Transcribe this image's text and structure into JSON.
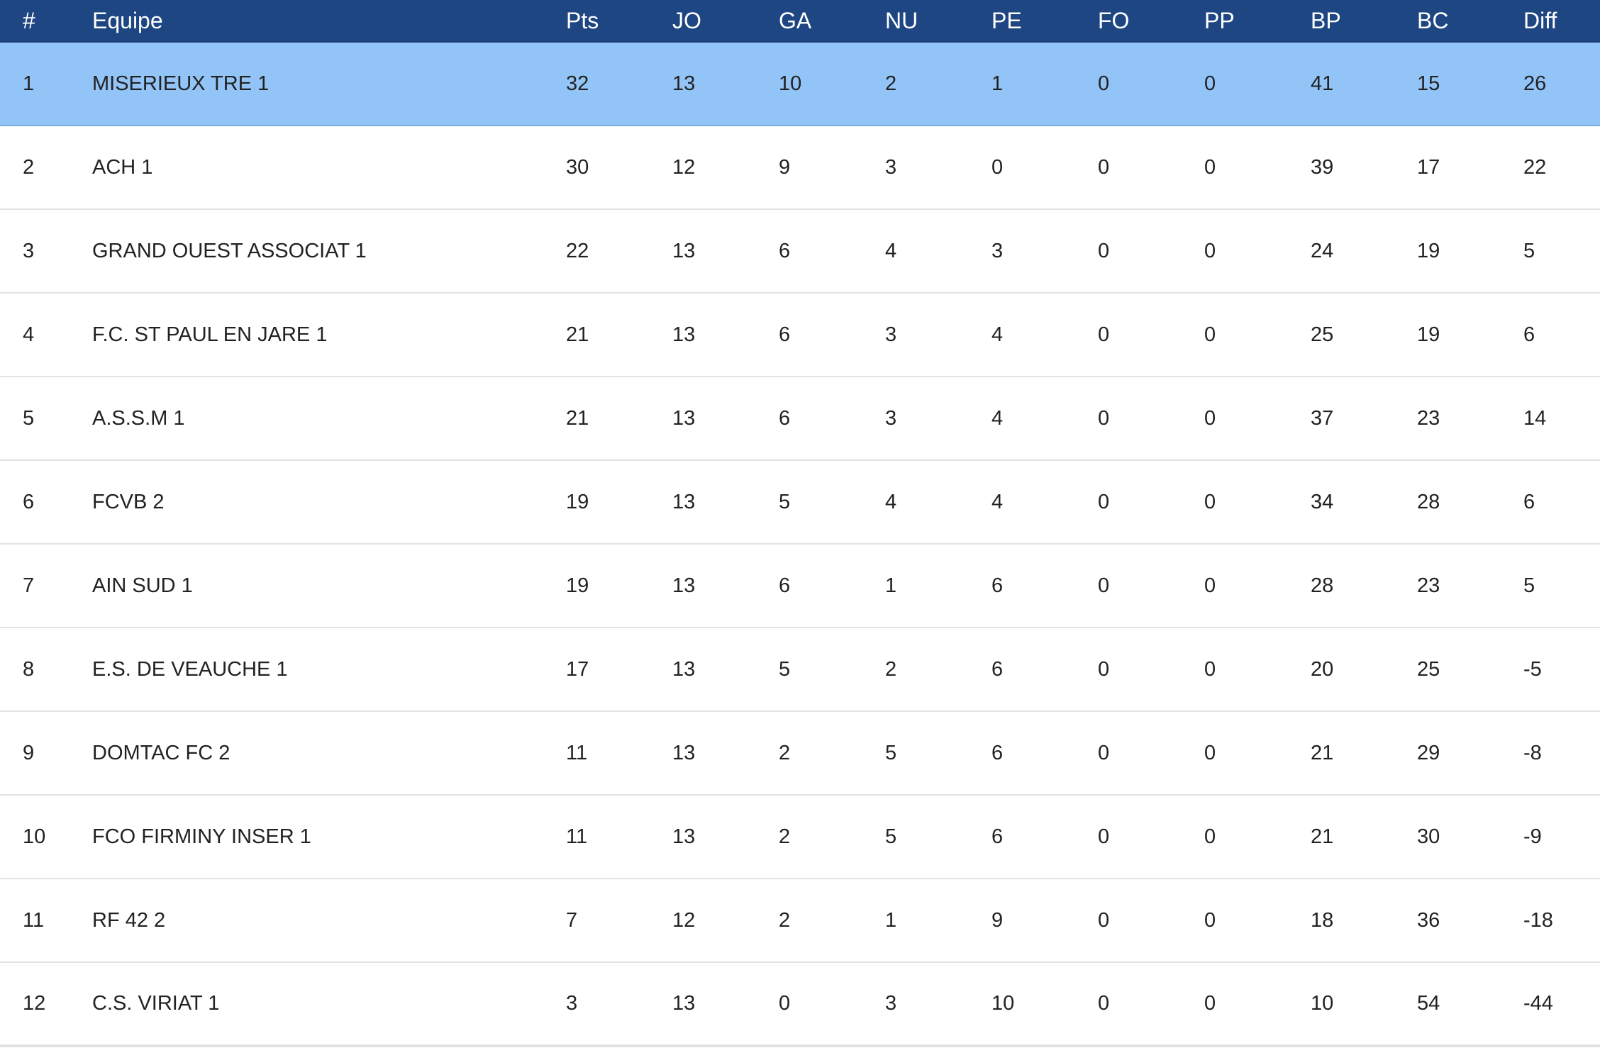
{
  "table": {
    "headers": [
      "#",
      "Equipe",
      "Pts",
      "JO",
      "GA",
      "NU",
      "PE",
      "FO",
      "PP",
      "BP",
      "BC",
      "Diff"
    ],
    "rows": [
      [
        "1",
        "MISERIEUX TRE 1",
        "32",
        "13",
        "10",
        "2",
        "1",
        "0",
        "0",
        "41",
        "15",
        "26"
      ],
      [
        "2",
        "ACH 1",
        "30",
        "12",
        "9",
        "3",
        "0",
        "0",
        "0",
        "39",
        "17",
        "22"
      ],
      [
        "3",
        "GRAND OUEST ASSOCIAT 1",
        "22",
        "13",
        "6",
        "4",
        "3",
        "0",
        "0",
        "24",
        "19",
        "5"
      ],
      [
        "4",
        "F.C. ST PAUL EN JARE 1",
        "21",
        "13",
        "6",
        "3",
        "4",
        "0",
        "0",
        "25",
        "19",
        "6"
      ],
      [
        "5",
        "A.S.S.M 1",
        "21",
        "13",
        "6",
        "3",
        "4",
        "0",
        "0",
        "37",
        "23",
        "14"
      ],
      [
        "6",
        "FCVB 2",
        "19",
        "13",
        "5",
        "4",
        "4",
        "0",
        "0",
        "34",
        "28",
        "6"
      ],
      [
        "7",
        "AIN SUD 1",
        "19",
        "13",
        "6",
        "1",
        "6",
        "0",
        "0",
        "28",
        "23",
        "5"
      ],
      [
        "8",
        "E.S. DE VEAUCHE 1",
        "17",
        "13",
        "5",
        "2",
        "6",
        "0",
        "0",
        "20",
        "25",
        "-5"
      ],
      [
        "9",
        "DOMTAC FC 2",
        "11",
        "13",
        "2",
        "5",
        "6",
        "0",
        "0",
        "21",
        "29",
        "-8"
      ],
      [
        "10",
        "FCO FIRMINY INSER 1",
        "11",
        "13",
        "2",
        "5",
        "6",
        "0",
        "0",
        "21",
        "30",
        "-9"
      ],
      [
        "11",
        "RF 42 2",
        "7",
        "12",
        "2",
        "1",
        "9",
        "0",
        "0",
        "18",
        "36",
        "-18"
      ],
      [
        "12",
        "C.S. VIRIAT 1",
        "3",
        "13",
        "0",
        "3",
        "10",
        "0",
        "0",
        "10",
        "54",
        "-44"
      ]
    ],
    "highlighted_row": 0
  },
  "colors": {
    "header_bg": "#1e4682",
    "header_text": "#ffffff",
    "highlight_row_bg": "#93c4f8",
    "row_divider": "#e3e3e3",
    "body_text": "#222222"
  }
}
